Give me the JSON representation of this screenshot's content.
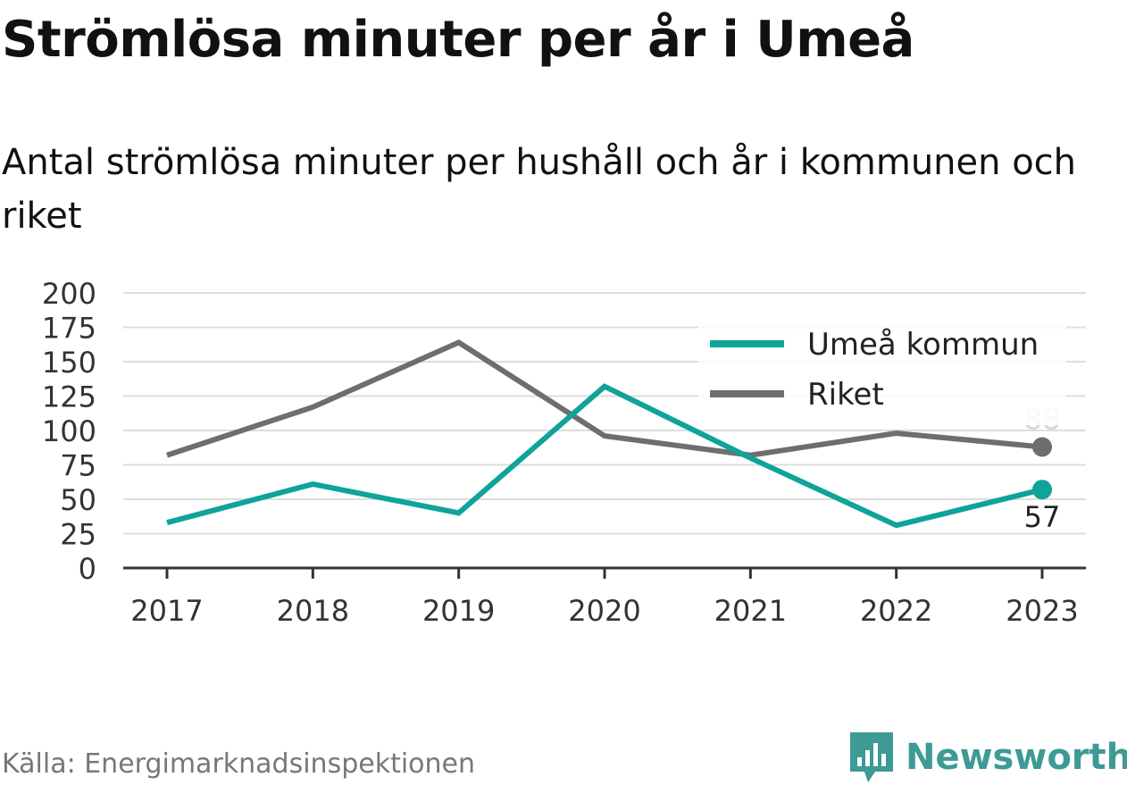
{
  "header": {
    "title": "Strömlösa minuter per år i Umeå",
    "subtitle": "Antal strömlösa minuter per hushåll och år i kommunen och riket"
  },
  "footer": {
    "source": "Källa: Energimarknadsinspektionen",
    "brand": "Newsworthy",
    "brand_icon": "newsworthy-logo-icon",
    "brand_color": "#3d9a95"
  },
  "chart_data": {
    "type": "line",
    "title": "",
    "xlabel": "",
    "ylabel": "",
    "x": [
      "2017",
      "2018",
      "2019",
      "2020",
      "2021",
      "2022",
      "2023"
    ],
    "ylim": [
      0,
      200
    ],
    "yticks": [
      "0",
      "25",
      "50",
      "75",
      "100",
      "125",
      "150",
      "175",
      "200"
    ],
    "grid": true,
    "legend": "top-right",
    "series": [
      {
        "name": "Umeå kommun",
        "color": "#0fa39a",
        "values": [
          33,
          61,
          40,
          132,
          80,
          31,
          57
        ],
        "end_label": "57"
      },
      {
        "name": "Riket",
        "color": "#6d6d72",
        "values": [
          82,
          117,
          164,
          96,
          82,
          98,
          88
        ],
        "end_label": "88"
      }
    ]
  }
}
